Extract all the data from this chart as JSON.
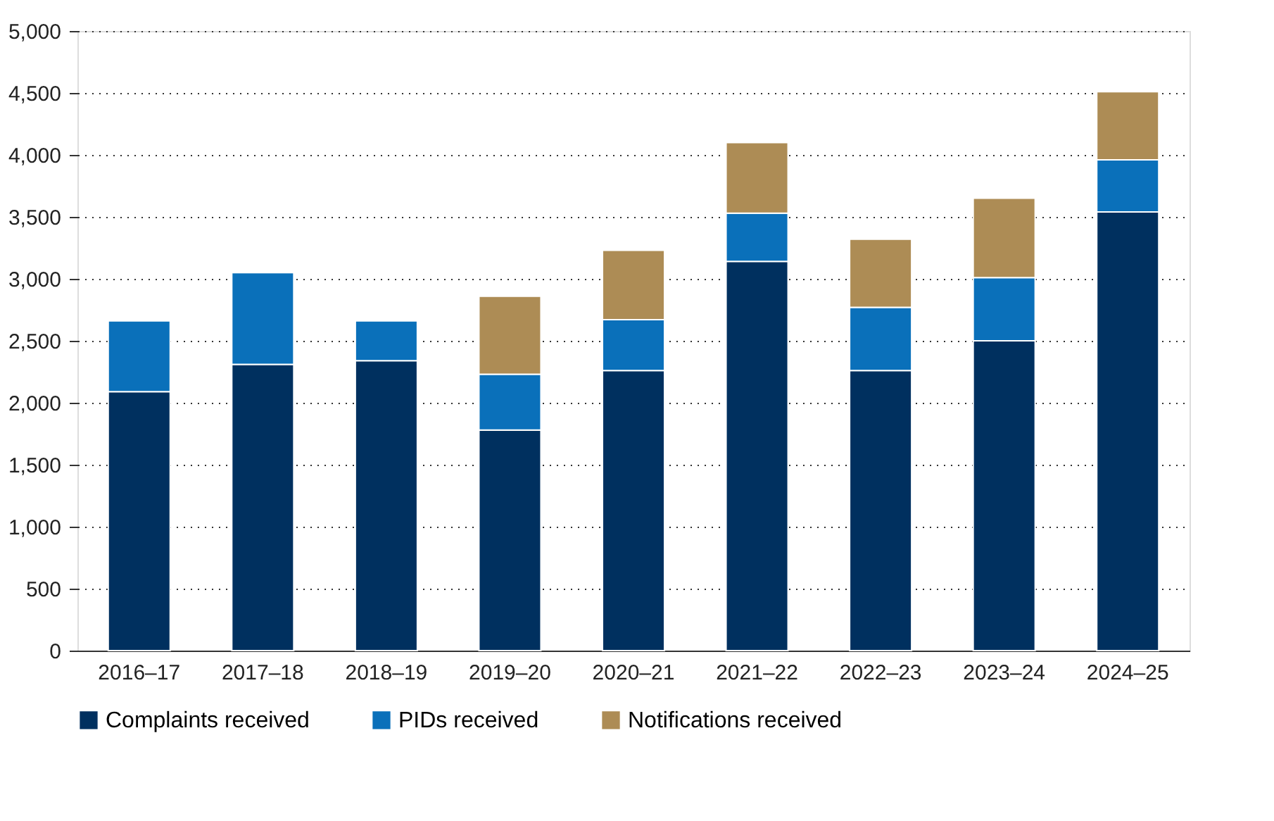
{
  "chart_data": {
    "type": "bar",
    "stacked": true,
    "categories": [
      "2016–17",
      "2017–18",
      "2018–19",
      "2019–20",
      "2020–21",
      "2021–22",
      "2022–23",
      "2023–24",
      "2024–25"
    ],
    "series": [
      {
        "name": "Complaints received",
        "color": "#00305f",
        "values": [
          2090,
          2310,
          2340,
          1780,
          2260,
          3140,
          2260,
          2500,
          3540
        ]
      },
      {
        "name": "PIDs received",
        "color": "#0a70ba",
        "values": [
          570,
          740,
          320,
          450,
          410,
          390,
          510,
          510,
          420
        ]
      },
      {
        "name": "Notifications received",
        "color": "#ad8c55",
        "values": [
          null,
          null,
          null,
          630,
          560,
          570,
          550,
          640,
          550
        ]
      }
    ],
    "ylim": [
      0,
      5000
    ],
    "yticks": [
      0,
      {
        "value": 500,
        "label": "500"
      },
      {
        "value": 1000,
        "label": "1,000"
      },
      {
        "value": 1500,
        "label": "1,500"
      },
      {
        "value": 2000,
        "label": "2,000"
      },
      {
        "value": 2500,
        "label": "2,500"
      },
      {
        "value": 3000,
        "label": "3,000"
      },
      {
        "value": 3500,
        "label": "3,500"
      },
      {
        "value": 4000,
        "label": "4,000"
      },
      {
        "value": 4500,
        "label": "4,500"
      },
      {
        "value": 5000,
        "label": "5,000"
      }
    ],
    "grid": "y",
    "legend": "bottom"
  }
}
